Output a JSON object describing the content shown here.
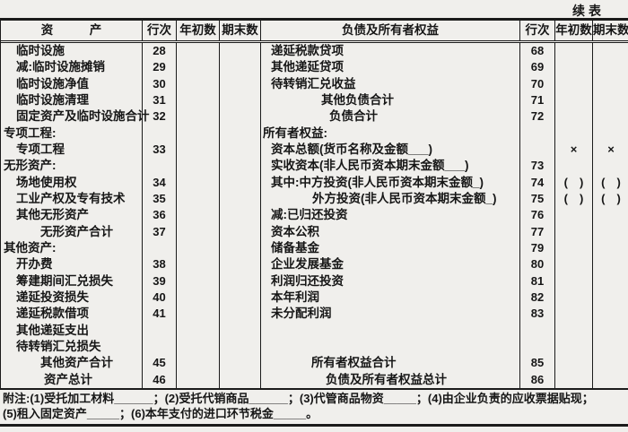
{
  "page": {
    "continued_label": "续表",
    "ink": "#161616",
    "paper": "#f0efec"
  },
  "header": {
    "asset_col": "资　　　产",
    "liability_col": "负债及所有者权益",
    "line_col": "行次",
    "begin_col": "年初数",
    "end_col": "期末数"
  },
  "left_rows": [
    {
      "label": "临时设施",
      "line": "28",
      "begin": "",
      "end": "",
      "style": "item"
    },
    {
      "label": "减:临时设施摊销",
      "line": "29",
      "begin": "",
      "end": "",
      "style": "item"
    },
    {
      "label": "临时设施净值",
      "line": "30",
      "begin": "",
      "end": "",
      "style": "item"
    },
    {
      "label": "临时设施清理",
      "line": "31",
      "begin": "",
      "end": "",
      "style": "item"
    },
    {
      "label": "固定资产及临时设施合计",
      "line": "32",
      "begin": "",
      "end": "",
      "style": "item"
    },
    {
      "label": "专项工程:",
      "line": "",
      "begin": "",
      "end": "",
      "style": "section"
    },
    {
      "label": "专项工程",
      "line": "33",
      "begin": "",
      "end": "",
      "style": "item"
    },
    {
      "label": "无形资产:",
      "line": "",
      "begin": "",
      "end": "",
      "style": "section"
    },
    {
      "label": "场地使用权",
      "line": "34",
      "begin": "",
      "end": "",
      "style": "item"
    },
    {
      "label": "工业产权及专有技术",
      "line": "35",
      "begin": "",
      "end": "",
      "style": "item"
    },
    {
      "label": "其他无形资产",
      "line": "36",
      "begin": "",
      "end": "",
      "style": "item"
    },
    {
      "label": "无形资产合计",
      "line": "37",
      "begin": "",
      "end": "",
      "style": "total"
    },
    {
      "label": "其他资产:",
      "line": "",
      "begin": "",
      "end": "",
      "style": "section"
    },
    {
      "label": "开办费",
      "line": "38",
      "begin": "",
      "end": "",
      "style": "item"
    },
    {
      "label": "筹建期间汇兑损失",
      "line": "39",
      "begin": "",
      "end": "",
      "style": "item"
    },
    {
      "label": "递延投资损失",
      "line": "40",
      "begin": "",
      "end": "",
      "style": "item"
    },
    {
      "label": "递延税款借项",
      "line": "41",
      "begin": "",
      "end": "",
      "style": "item"
    },
    {
      "label": "其他递延支出",
      "line": "",
      "begin": "",
      "end": "",
      "style": "item"
    },
    {
      "label": "待转销汇兑损失",
      "line": "",
      "begin": "",
      "end": "",
      "style": "item"
    },
    {
      "label": "其他资产合计",
      "line": "45",
      "begin": "",
      "end": "",
      "style": "total"
    },
    {
      "label": "资产总计",
      "line": "46",
      "begin": "",
      "end": "",
      "style": "total2"
    }
  ],
  "right_rows": [
    {
      "label": "递延税款贷项",
      "line": "68",
      "begin": "",
      "end": "",
      "style": "item"
    },
    {
      "label": "其他递延贷项",
      "line": "69",
      "begin": "",
      "end": "",
      "style": "item"
    },
    {
      "label": "待转销汇兑收益",
      "line": "70",
      "begin": "",
      "end": "",
      "style": "item"
    },
    {
      "label": "其他负债合计",
      "line": "71",
      "begin": "",
      "end": "",
      "style": "total"
    },
    {
      "label": "负债合计",
      "line": "72",
      "begin": "",
      "end": "",
      "style": "total2"
    },
    {
      "label": "所有者权益:",
      "line": "",
      "begin": "",
      "end": "",
      "style": "section"
    },
    {
      "label": "资本总额(货币名称及金额___)",
      "line": "",
      "begin": "×",
      "end": "×",
      "style": "item"
    },
    {
      "label": "实收资本(非人民币资本期末金额___)",
      "line": "73",
      "begin": "",
      "end": "",
      "style": "item"
    },
    {
      "label": "其中:中方投资(非人民币资本期末金额_)",
      "line": "74",
      "begin": "(　)",
      "end": "(　)",
      "style": "item"
    },
    {
      "label": "外方投资(非人民币资本期末金额_)",
      "line": "75",
      "begin": "(　)",
      "end": "(　)",
      "style": "sub"
    },
    {
      "label": "减:已归还投资",
      "line": "76",
      "begin": "",
      "end": "",
      "style": "item"
    },
    {
      "label": "资本公积",
      "line": "77",
      "begin": "",
      "end": "",
      "style": "item"
    },
    {
      "label": "储备基金",
      "line": "79",
      "begin": "",
      "end": "",
      "style": "item"
    },
    {
      "label": "企业发展基金",
      "line": "80",
      "begin": "",
      "end": "",
      "style": "item"
    },
    {
      "label": "利润归还投资",
      "line": "81",
      "begin": "",
      "end": "",
      "style": "item"
    },
    {
      "label": "本年利润",
      "line": "82",
      "begin": "",
      "end": "",
      "style": "item"
    },
    {
      "label": "未分配利润",
      "line": "83",
      "begin": "",
      "end": "",
      "style": "item"
    },
    {
      "label": "",
      "line": "",
      "begin": "",
      "end": "",
      "style": "item"
    },
    {
      "label": "",
      "line": "",
      "begin": "",
      "end": "",
      "style": "item"
    },
    {
      "label": "所有者权益合计",
      "line": "85",
      "begin": "",
      "end": "",
      "style": "centerish"
    },
    {
      "label": "负债及所有者权益总计",
      "line": "86",
      "begin": "",
      "end": "",
      "style": "centerish2"
    }
  ],
  "footnotes": {
    "line1": "附注:(1)受托加工材料______；(2)受托代销商品______；(3)代管商品物资_____；(4)由企业负责的应收票据贴现；",
    "line2": "(5)租入固定资产_____；(6)本年支付的进口环节税金_____。"
  }
}
